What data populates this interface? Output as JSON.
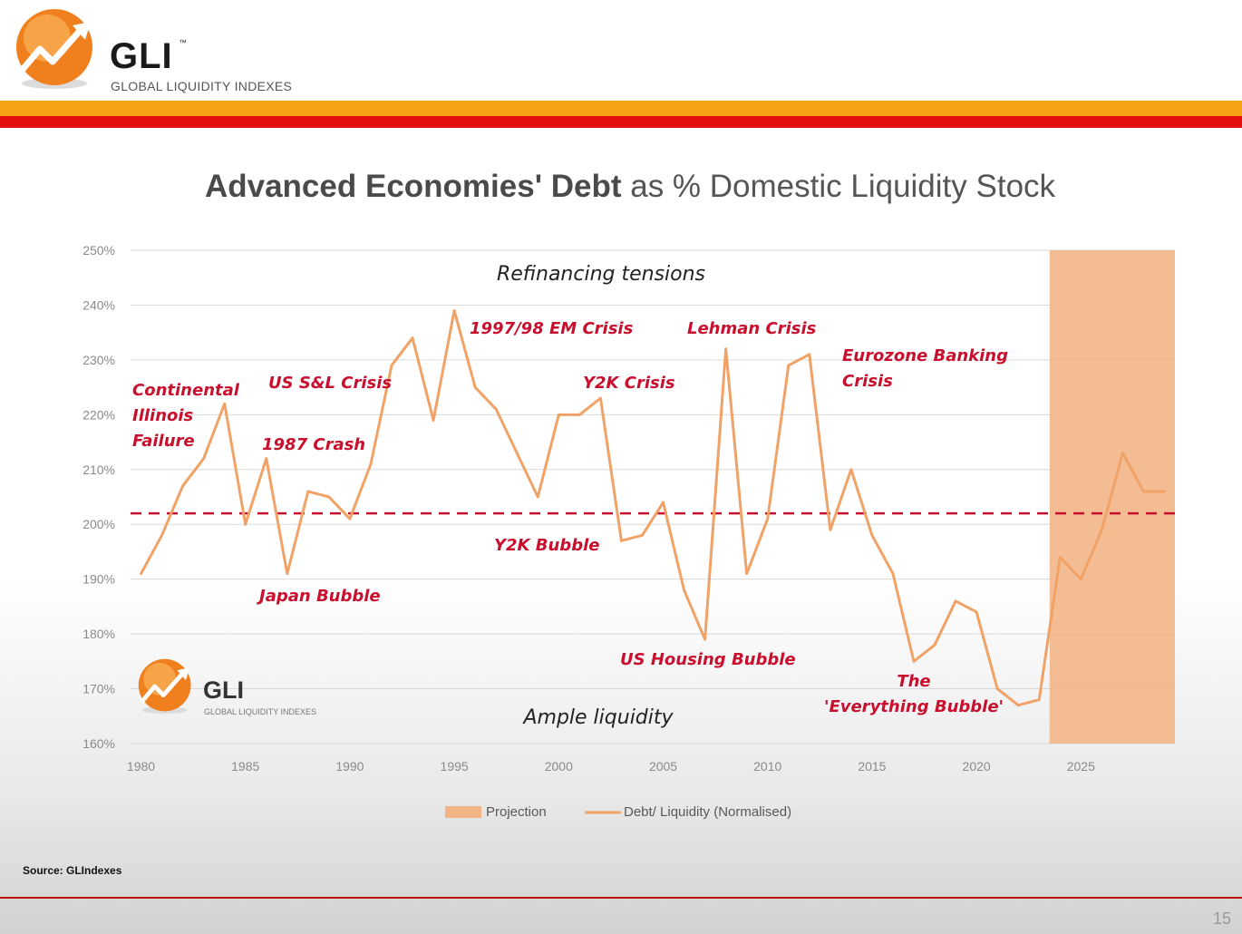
{
  "header": {
    "logo_name": "GLI",
    "logo_tm": "™",
    "logo_sub": "GLOBAL LIQUIDITY INDEXES"
  },
  "title": {
    "bold": "Advanced Economies' Debt",
    "rest": " as % Domestic Liquidity Stock"
  },
  "source": "Source: GLIndexes",
  "page_number": "15",
  "colors": {
    "line": "#f0a267",
    "projection": "#f3b586",
    "average_line": "#c8102e",
    "annotation": "#c8102e",
    "orange_band": "#f5a216",
    "red_band": "#e50f0f"
  },
  "chart_data": {
    "type": "line",
    "x": [
      1980,
      1981,
      1982,
      1983,
      1984,
      1985,
      1986,
      1987,
      1988,
      1989,
      1990,
      1991,
      1992,
      1993,
      1994,
      1995,
      1996,
      1997,
      1998,
      1999,
      2000,
      2001,
      2002,
      2003,
      2004,
      2005,
      2006,
      2007,
      2008,
      2009,
      2010,
      2011,
      2012,
      2013,
      2014,
      2015,
      2016,
      2017,
      2018,
      2019,
      2020,
      2021,
      2022,
      2023,
      2024,
      2025,
      2026,
      2027,
      2028,
      2029
    ],
    "series": [
      {
        "name": "Debt/ Liquidity (Normalised)",
        "values": [
          191,
          198,
          207,
          212,
          222,
          200,
          212,
          191,
          206,
          205,
          201,
          211,
          229,
          234,
          219,
          239,
          225,
          221,
          213,
          205,
          220,
          220,
          223,
          197,
          198,
          204,
          188,
          179,
          232,
          191,
          201,
          229,
          231,
          199,
          210,
          198,
          191,
          175,
          178,
          186,
          184,
          170,
          167,
          168,
          194,
          190,
          199,
          213,
          206,
          206
        ]
      }
    ],
    "y_unit": "%",
    "ylim": [
      160,
      250
    ],
    "xlim": [
      1979.5,
      2029.5
    ],
    "yticks": [
      "250%",
      "240%",
      "230%",
      "220%",
      "210%",
      "200%",
      "190%",
      "180%",
      "170%",
      "160%"
    ],
    "xticks": [
      "1980",
      "1985",
      "1990",
      "1995",
      "2000",
      "2005",
      "2010",
      "2015",
      "2020",
      "2025"
    ],
    "average_line": 202,
    "projection_start": 2023.5,
    "projection_end": 2029.5,
    "grid": true,
    "legend": {
      "position": "bottom",
      "items": [
        "Projection",
        "Debt/ Liquidity (Normalised)"
      ]
    },
    "annotations": [
      {
        "lines": [
          "Continental",
          "Illinois",
          "Failure"
        ]
      },
      {
        "lines": [
          "US S&L Crisis"
        ]
      },
      {
        "lines": [
          "1987 Crash"
        ]
      },
      {
        "lines": [
          "Japan Bubble"
        ]
      },
      {
        "lines": [
          "1997/98 EM Crisis"
        ]
      },
      {
        "lines": [
          "Y2K Crisis"
        ]
      },
      {
        "lines": [
          "Y2K Bubble"
        ]
      },
      {
        "lines": [
          "Lehman Crisis"
        ]
      },
      {
        "lines": [
          "US Housing Bubble"
        ]
      },
      {
        "lines": [
          "Eurozone Banking",
          "Crisis"
        ]
      },
      {
        "lines": [
          "The",
          "'Everything Bubble'"
        ]
      }
    ],
    "zones": [
      "Refinancing tensions",
      "Ample liquidity"
    ]
  }
}
